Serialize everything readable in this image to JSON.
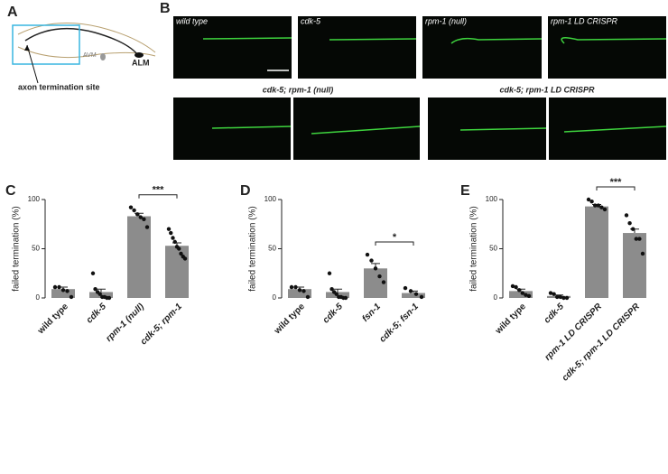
{
  "panel_a": {
    "label": "A",
    "cells": [
      "AVM",
      "ALM"
    ],
    "annotation": "axon termination site"
  },
  "panel_b": {
    "label": "B",
    "top": [
      "wild type",
      "cdk-5",
      "rpm-1 (null)",
      "rpm-1 LD CRISPR"
    ],
    "bottom": [
      "cdk-5; rpm-1 (null)",
      "cdk-5; rpm-1 LD CRISPR"
    ]
  },
  "chart_data": [
    {
      "type": "bar",
      "panel": "C",
      "ylabel": "failed termination (%)",
      "categories": [
        "wild type",
        "cdk-5",
        "rpm-1 (null)",
        "cdk-5; rpm-1"
      ],
      "values": [
        9,
        6,
        83,
        53
      ],
      "errors": [
        2,
        3,
        3,
        3
      ],
      "points": [
        [
          11,
          11,
          8,
          7,
          1
        ],
        [
          25,
          9,
          6,
          4,
          1,
          1,
          0,
          0
        ],
        [
          92,
          89,
          85,
          82,
          80,
          72
        ],
        [
          70,
          66,
          61,
          57,
          52,
          50,
          45,
          42,
          40
        ]
      ],
      "color": "#8c8c8c",
      "ylim": [
        0,
        100
      ],
      "yticks": [
        0,
        50,
        100
      ],
      "significance": {
        "label": "***",
        "between": [
          2,
          3
        ]
      }
    },
    {
      "type": "bar",
      "panel": "D",
      "ylabel": "failed termination (%)",
      "categories": [
        "wild type",
        "cdk-5",
        "fsn-1",
        "cdk-5; fsn-1"
      ],
      "values": [
        9,
        6,
        30,
        5
      ],
      "errors": [
        2,
        3,
        5,
        2
      ],
      "points": [
        [
          11,
          11,
          8,
          7,
          1
        ],
        [
          25,
          9,
          6,
          4,
          1,
          1,
          0,
          0
        ],
        [
          44,
          38,
          30,
          22,
          16
        ],
        [
          10,
          7,
          4,
          1
        ]
      ],
      "color": "#8c8c8c",
      "ylim": [
        0,
        100
      ],
      "yticks": [
        0,
        50,
        100
      ],
      "significance": {
        "label": "*",
        "between": [
          2,
          3
        ]
      }
    },
    {
      "type": "bar",
      "panel": "E",
      "ylabel": "failed termination (%)",
      "categories": [
        "wild type",
        "cdk-5",
        "rpm-1 LD CRISPR",
        "cdk-5; rpm-1 LD CRISPR"
      ],
      "values": [
        7,
        2,
        93,
        66
      ],
      "errors": [
        2,
        1,
        2,
        4
      ],
      "points": [
        [
          12,
          11,
          8,
          5,
          3,
          2
        ],
        [
          5,
          4,
          1,
          1,
          0,
          0
        ],
        [
          100,
          98,
          94,
          94,
          92,
          90
        ],
        [
          84,
          76,
          70,
          60,
          60,
          45
        ]
      ],
      "color": "#8c8c8c",
      "ylim": [
        0,
        100
      ],
      "yticks": [
        0,
        50,
        100
      ],
      "significance": {
        "label": "***",
        "between": [
          2,
          3
        ]
      }
    }
  ]
}
